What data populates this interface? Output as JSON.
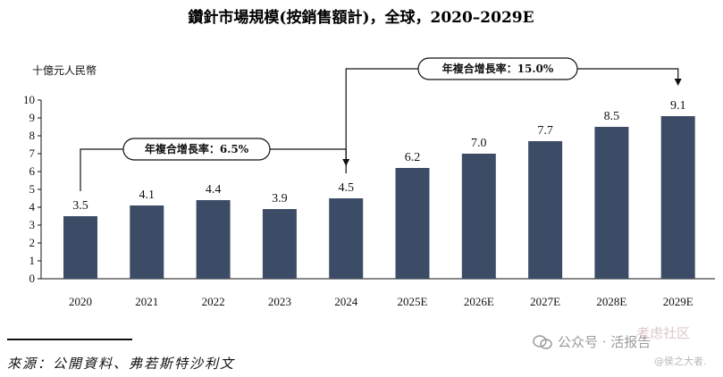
{
  "chart_data": {
    "type": "bar",
    "title": "鑽針市場規模(按銷售額計)，全球，2020–2029E",
    "ylabel": "十億元人民幣",
    "ylim": [
      0,
      10
    ],
    "yticks": [
      0,
      1,
      2,
      3,
      4,
      5,
      6,
      7,
      8,
      9,
      10
    ],
    "categories": [
      "2020",
      "2021",
      "2022",
      "2023",
      "2024",
      "2025E",
      "2026E",
      "2027E",
      "2028E",
      "2029E"
    ],
    "values": [
      3.5,
      4.1,
      4.4,
      3.9,
      4.5,
      6.2,
      7.0,
      7.7,
      8.5,
      9.1
    ],
    "value_labels": [
      "3.5",
      "4.1",
      "4.4",
      "3.9",
      "4.5",
      "6.2",
      "7.0",
      "7.7",
      "8.5",
      "9.1"
    ],
    "bar_color": "#3d4c66",
    "annotations": [
      {
        "text": "年複合增長率：6.5%",
        "from": "2020",
        "to": "2024"
      },
      {
        "text": "年複合增長率：15.0%",
        "from": "2024",
        "to": "2029E"
      }
    ]
  },
  "source": "來源：公開資料、弗若斯特沙利文",
  "watermark": {
    "account": "公众号 · 活报告",
    "overlay": "考虑社区",
    "small": "@侯之大者."
  }
}
